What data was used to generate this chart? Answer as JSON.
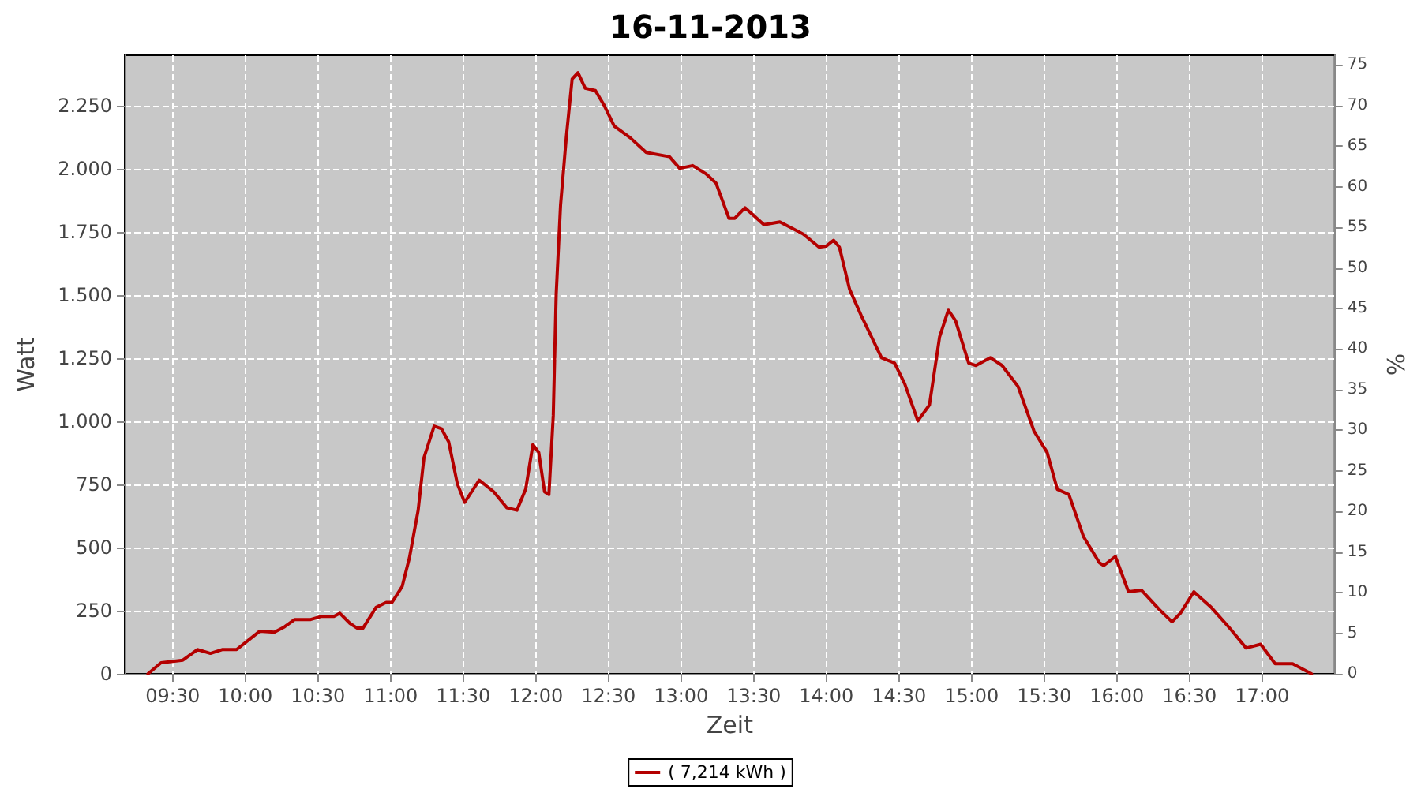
{
  "chart_data": {
    "type": "line",
    "title": "16-11-2013",
    "xlabel": "Zeit",
    "ylabel": "Watt",
    "y2label": "%",
    "xlim": [
      9.17,
      17.5
    ],
    "xticks": [
      {
        "value": 9.5,
        "label": "09:30"
      },
      {
        "value": 10,
        "label": "10:00"
      },
      {
        "value": 10.5,
        "label": "10:30"
      },
      {
        "value": 11,
        "label": "11:00"
      },
      {
        "value": 11.5,
        "label": "11:30"
      },
      {
        "value": 12,
        "label": "12:00"
      },
      {
        "value": 12.5,
        "label": "12:30"
      },
      {
        "value": 13,
        "label": "13:00"
      },
      {
        "value": 13.5,
        "label": "13:30"
      },
      {
        "value": 14,
        "label": "14:00"
      },
      {
        "value": 14.5,
        "label": "14:30"
      },
      {
        "value": 15,
        "label": "15:00"
      },
      {
        "value": 15.5,
        "label": "15:30"
      },
      {
        "value": 16,
        "label": "16:00"
      },
      {
        "value": 16.5,
        "label": "16:30"
      },
      {
        "value": 17,
        "label": "17:00"
      }
    ],
    "ylim": [
      0,
      2450
    ],
    "yticks": [
      0,
      250,
      500,
      750,
      {
        "value": 1000,
        "label": "1.000"
      },
      {
        "value": 1250,
        "label": "1.250"
      },
      {
        "value": 1500,
        "label": "1.500"
      },
      {
        "value": 1750,
        "label": "1.750"
      },
      {
        "value": 2000,
        "label": "2.000"
      },
      {
        "value": 2250,
        "label": "2.250"
      }
    ],
    "y2lim": [
      0,
      76.2
    ],
    "y2ticks": [
      0,
      5,
      10,
      15,
      20,
      25,
      30,
      35,
      40,
      45,
      50,
      55,
      60,
      65,
      70,
      75
    ],
    "grid": true,
    "legend": "bottom",
    "marker": "none",
    "line_style": "solid",
    "x": [
      9.33,
      9.42,
      9.57,
      9.67,
      9.76,
      9.84,
      9.94,
      10.1,
      10.2,
      10.27,
      10.34,
      10.45,
      10.52,
      10.61,
      10.65,
      10.72,
      10.77,
      10.81,
      10.9,
      10.97,
      11.01,
      11.08,
      11.13,
      11.19,
      11.23,
      11.3,
      11.35,
      11.4,
      11.46,
      11.51,
      11.61,
      11.71,
      11.8,
      11.87,
      11.93,
      11.98,
      12.02,
      12.06,
      12.09,
      12.12,
      12.14,
      12.17,
      12.21,
      12.25,
      12.29,
      12.34,
      12.41,
      12.47,
      12.54,
      12.65,
      12.76,
      12.92,
      12.99,
      13.08,
      13.17,
      13.24,
      13.33,
      13.37,
      13.44,
      13.57,
      13.68,
      13.84,
      13.95,
      14.0,
      14.05,
      14.09,
      14.16,
      14.24,
      14.38,
      14.47,
      14.54,
      14.63,
      14.71,
      14.78,
      14.84,
      14.89,
      14.98,
      15.03,
      15.13,
      15.21,
      15.32,
      15.43,
      15.52,
      15.59,
      15.67,
      15.77,
      15.88,
      15.91,
      15.99,
      16.08,
      16.17,
      16.29,
      16.38,
      16.44,
      16.53,
      16.65,
      16.78,
      16.89,
      16.99,
      17.09,
      17.21,
      17.34
    ],
    "series": [
      {
        "name": "( 7,214 kWh )",
        "color": "#b40000",
        "values": [
          0,
          44,
          54,
          96,
          81,
          96,
          96,
          169,
          165,
          186,
          215,
          215,
          227,
          227,
          240,
          200,
          181,
          181,
          263,
          283,
          283,
          346,
          460,
          648,
          856,
          981,
          971,
          919,
          752,
          679,
          767,
          721,
          658,
          648,
          731,
          908,
          877,
          721,
          710,
          1023,
          1502,
          1856,
          2127,
          2356,
          2381,
          2319,
          2310,
          2252,
          2169,
          2123,
          2065,
          2048,
          2002,
          2013,
          1981,
          1944,
          1804,
          1804,
          1846,
          1779,
          1790,
          1742,
          1690,
          1694,
          1717,
          1690,
          1523,
          1419,
          1252,
          1231,
          1148,
          1002,
          1065,
          1335,
          1440,
          1398,
          1231,
          1221,
          1252,
          1221,
          1138,
          961,
          877,
          731,
          710,
          544,
          440,
          429,
          465,
          325,
          331,
          256,
          206,
          242,
          325,
          263,
          179,
          102,
          117,
          40,
          40,
          0
        ]
      }
    ]
  }
}
